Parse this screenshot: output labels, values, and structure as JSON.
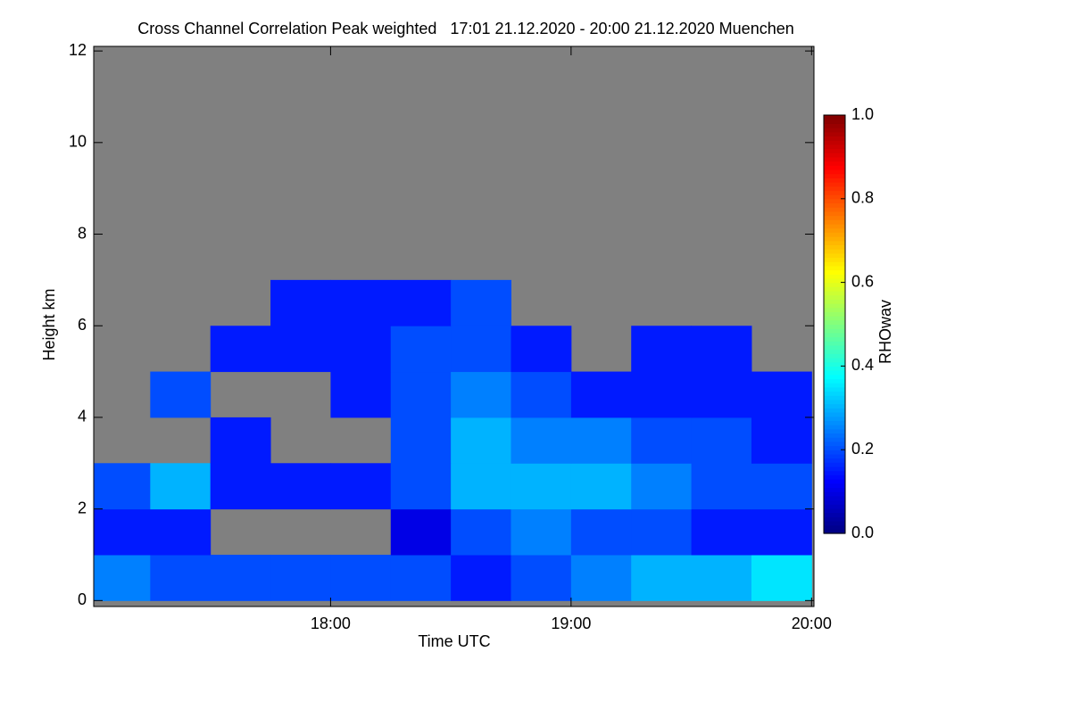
{
  "chart_data": {
    "type": "heatmap",
    "title": "Cross Channel Correlation Peak weighted   17:01 21.12.2020 - 20:00 21.12.2020 Muenchen",
    "xlabel": "Time UTC",
    "ylabel": "Height km",
    "colorbar_label": "RHOwav",
    "colormap": "jet",
    "background": "#808080",
    "x_edges": [
      17.0,
      17.25,
      17.5,
      17.75,
      18.0,
      18.25,
      18.5,
      18.75,
      19.0,
      19.25,
      19.5,
      19.75,
      20.0
    ],
    "y_edges": [
      0,
      1,
      2,
      3,
      4,
      5,
      6,
      7
    ],
    "z": [
      [
        0.25,
        0.2,
        0.2,
        0.2,
        0.2,
        0.2,
        0.15,
        0.2,
        0.25,
        0.3,
        0.3,
        0.35
      ],
      [
        0.15,
        0.15,
        null,
        null,
        null,
        0.1,
        0.2,
        0.25,
        0.2,
        0.2,
        0.15,
        0.15
      ],
      [
        0.2,
        0.3,
        0.15,
        0.15,
        0.15,
        0.2,
        0.3,
        0.3,
        0.3,
        0.25,
        0.2,
        0.2
      ],
      [
        null,
        null,
        0.15,
        null,
        null,
        0.2,
        0.3,
        0.25,
        0.25,
        0.2,
        0.2,
        0.15
      ],
      [
        null,
        0.2,
        null,
        null,
        0.15,
        0.2,
        0.25,
        0.2,
        0.15,
        0.15,
        0.15,
        0.15
      ],
      [
        null,
        null,
        0.15,
        0.15,
        0.15,
        0.2,
        0.2,
        0.15,
        null,
        0.15,
        0.15,
        null
      ],
      [
        null,
        null,
        null,
        0.15,
        0.15,
        0.15,
        0.2,
        null,
        null,
        null,
        null,
        null
      ]
    ],
    "xlim": [
      17.015,
      20.01
    ],
    "xticks": [
      {
        "value": 18,
        "label": "18:00"
      },
      {
        "value": 19,
        "label": "19:00"
      },
      {
        "value": 20,
        "label": "20:00"
      }
    ],
    "ylim": [
      -0.13,
      12.1
    ],
    "yticks": [
      0,
      2,
      4,
      6,
      8,
      10,
      12
    ],
    "clim": [
      0,
      1
    ],
    "cticks": [
      {
        "value": 0,
        "label": "0.0"
      },
      {
        "value": 0.2,
        "label": "0.2"
      },
      {
        "value": 0.4,
        "label": "0.4"
      },
      {
        "value": 0.6,
        "label": "0.6"
      },
      {
        "value": 0.8,
        "label": "0.8"
      },
      {
        "value": 1,
        "label": "1.0"
      }
    ]
  }
}
